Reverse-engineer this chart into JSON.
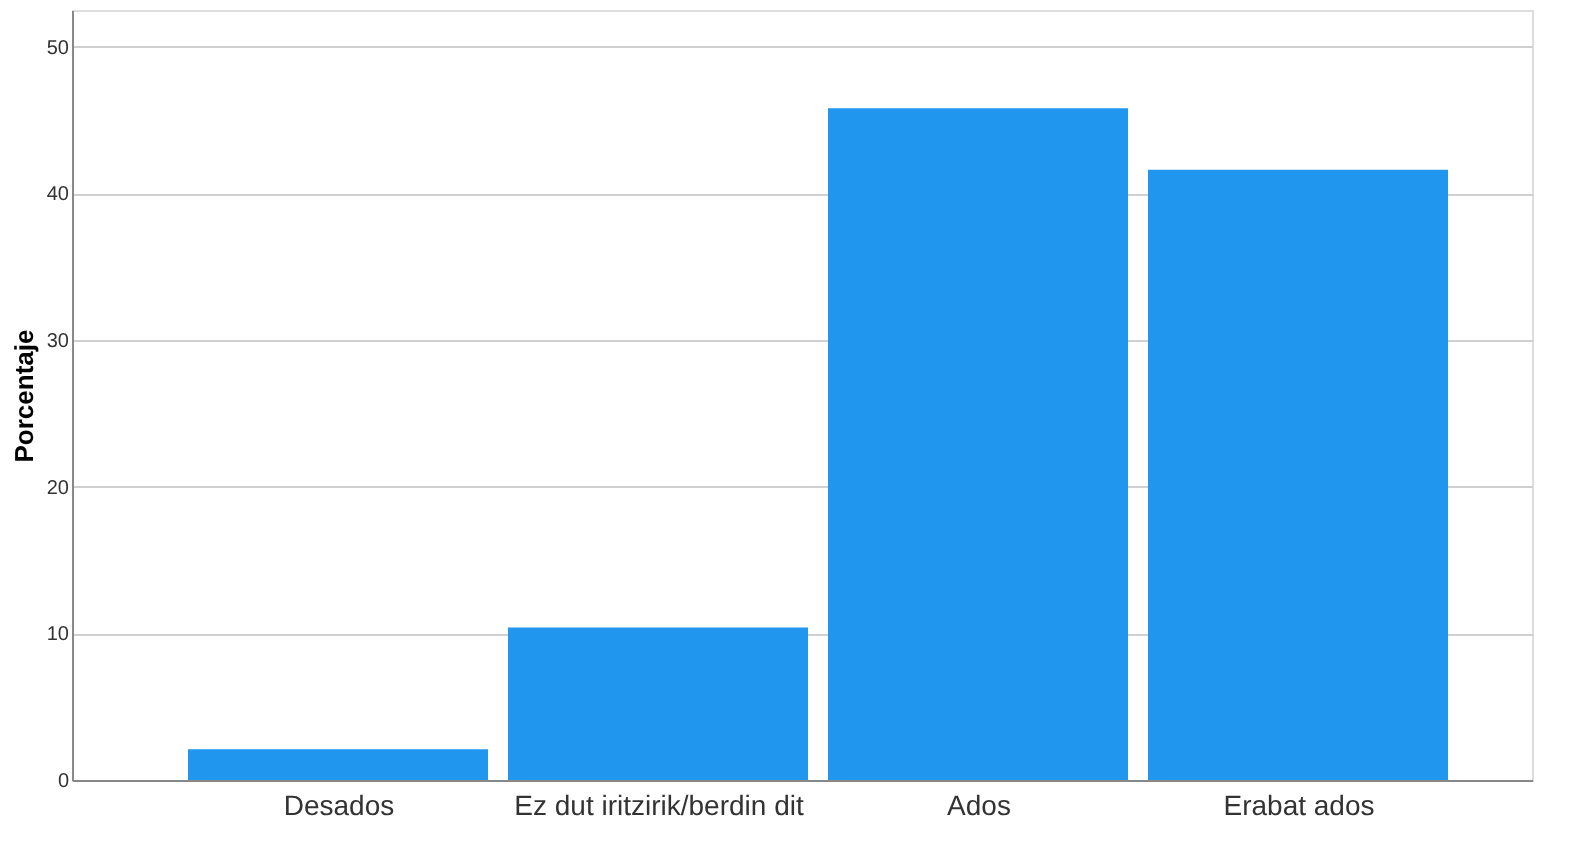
{
  "chart_data": {
    "type": "bar",
    "ylabel": "Porcentaje",
    "categories": [
      "Desados",
      "Ez dut iritzirik/berdin dit",
      "Ados",
      "Erabat ados"
    ],
    "values": [
      2.1,
      10.4,
      45.8,
      41.6
    ],
    "color": "#2196ee",
    "ylim": [
      0,
      52.5
    ],
    "yticks": [
      0,
      10,
      20,
      30,
      40,
      50
    ],
    "grid": "y"
  }
}
